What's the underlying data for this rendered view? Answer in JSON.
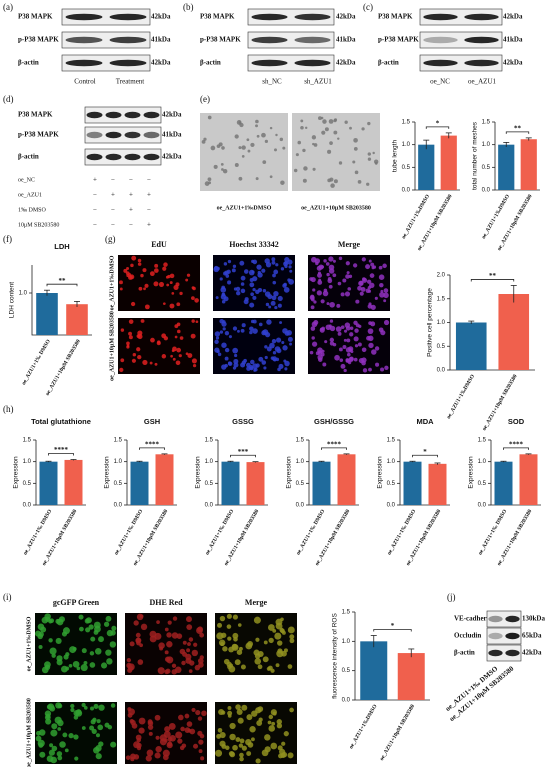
{
  "panels": [
    "(a)",
    "(b)",
    "(c)",
    "(d)",
    "(e)",
    "(f)",
    "(g)",
    "(h)",
    "(i)",
    "(j)"
  ],
  "blot_a": {
    "rows": [
      "P38 MAPK",
      "p-P38 MAPK",
      "β-actin"
    ],
    "sizes": [
      "42kDa",
      "41kDa",
      "42kDa"
    ],
    "lanes": [
      "Control",
      "Treatment"
    ]
  },
  "blot_b": {
    "rows": [
      "P38 MAPK",
      "p-P38 MAPK",
      "β-actin"
    ],
    "sizes": [
      "42kDa",
      "41kDa",
      "42kDa"
    ],
    "lanes": [
      "sh_NC",
      "sh_AZU1"
    ]
  },
  "blot_c": {
    "rows": [
      "P38 MAPK",
      "p-P38 MAPK",
      "β-actin"
    ],
    "sizes": [
      "42kDa",
      "41kDa",
      "42kDa"
    ],
    "lanes": [
      "oe_NC",
      "oe_AZU1"
    ]
  },
  "blot_d": {
    "rows": [
      "P38 MAPK",
      "p-P38 MAPK",
      "β-actin"
    ],
    "sizes": [
      "42kDa",
      "41kDa",
      "42kDa"
    ],
    "treatments": [
      "oe_NC",
      "oe_AZU1",
      "1‰ DMSO",
      "10μM SB203580"
    ],
    "signs": [
      [
        "+",
        "−",
        "−",
        "−"
      ],
      [
        "−",
        "+",
        "+",
        "+"
      ],
      [
        "−",
        "−",
        "+",
        "−"
      ],
      [
        "−",
        "−",
        "−",
        "+"
      ]
    ]
  },
  "images_e": [
    "oe_AZU1+1‰DMSO",
    "oe_AZU1+10μM SB203580"
  ],
  "images_g": {
    "columns": [
      "EdU",
      "Hoechst 33342",
      "Merge"
    ],
    "rows": [
      "oe_AZU1+1‰DMSO",
      "oe_AZU1+10μM SB203580"
    ]
  },
  "images_i": {
    "columns": [
      "gcGFP Green",
      "DHE Red",
      "Merge"
    ],
    "rows": [
      "oe_AZU1+1‰DMSO",
      "oe_AZU1+10μM SB203580"
    ]
  },
  "blot_j": {
    "rows": [
      "VE-cadherin",
      "Occludin",
      "β-actin"
    ],
    "sizes": [
      "130kDa",
      "65kDa",
      "42kDa"
    ],
    "lanes": [
      "oe_AZU1+1‰ DMSO",
      "oe_AZU1+10μM SB203580"
    ]
  },
  "chart_data": [
    {
      "type": "bar",
      "y_label": "tube length",
      "categories": [
        "oe_AZU1+1‰DMSO",
        "oe_AZU1+10μM SB203580"
      ],
      "values": [
        1.0,
        1.2
      ],
      "errors": [
        0.1,
        0.06
      ],
      "colors": [
        "#1f6b9c",
        "#f0604d"
      ],
      "significance": "*",
      "ylim": [
        0,
        1.5
      ],
      "yticks": [
        {
          "value": 0,
          "label": "0.0"
        },
        {
          "value": 0.5,
          "label": "0.5"
        },
        {
          "value": 1,
          "label": "1.0"
        },
        {
          "value": 1.5,
          "label": "1.5"
        }
      ]
    },
    {
      "type": "bar",
      "y_label": "total number of meshes",
      "categories": [
        "oe_AZU1+1‰DMSO",
        "oe_AZU1+10μM SB203580"
      ],
      "values": [
        1.0,
        1.12
      ],
      "errors": [
        0.05,
        0.03
      ],
      "colors": [
        "#1f6b9c",
        "#f0604d"
      ],
      "significance": "**",
      "ylim": [
        0,
        1.5
      ],
      "yticks": [
        {
          "value": 0,
          "label": "0.0"
        },
        {
          "value": 0.5,
          "label": "0.5"
        },
        {
          "value": 1,
          "label": "1.0"
        },
        {
          "value": 1.5,
          "label": "1.5"
        }
      ]
    },
    {
      "type": "bar",
      "title": "LDH",
      "y_label": "LDH content",
      "categories": [
        "oe_AZU1+1‰ DMSO",
        "oe_AZU1+10μM SB203580"
      ],
      "values": [
        1.0,
        0.96
      ],
      "errors": [
        0.01,
        0.01
      ],
      "colors": [
        "#1f6b9c",
        "#f0604d"
      ],
      "significance": "**",
      "ylim": [
        0.85,
        1.1
      ],
      "yticks": [
        {
          "value": 1,
          "label": "1.0"
        }
      ]
    },
    {
      "type": "bar",
      "y_label": "Positive cell percentage",
      "categories": [
        "oe_AZU1+1‰DMSO",
        "oe_AZU1+10μM SB203580"
      ],
      "values": [
        1.0,
        1.6
      ],
      "errors": [
        0.03,
        0.18
      ],
      "colors": [
        "#1f6b9c",
        "#f0604d"
      ],
      "significance": "**",
      "ylim": [
        0,
        2
      ],
      "yticks": [
        {
          "value": 0,
          "label": "0.0"
        },
        {
          "value": 0.5,
          "label": "0.5"
        },
        {
          "value": 1,
          "label": "1.0"
        },
        {
          "value": 1.5,
          "label": "1.5"
        },
        {
          "value": 2,
          "label": "2.0"
        }
      ]
    },
    {
      "type": "bar",
      "title": "Total glutathione",
      "y_label": "Expression",
      "categories": [
        "oe_AZU1+1‰ DMSO",
        "oe_AZU1+10μM SB203580"
      ],
      "values": [
        1.0,
        1.04
      ],
      "errors": [
        0.01,
        0.01
      ],
      "colors": [
        "#1f6b9c",
        "#f0604d"
      ],
      "significance": "****",
      "ylim": [
        0,
        1.5
      ],
      "yticks": [
        {
          "value": 0,
          "label": "0.0"
        },
        {
          "value": 0.5,
          "label": "0.5"
        },
        {
          "value": 1,
          "label": "1.0"
        },
        {
          "value": 1.5,
          "label": "1.5"
        }
      ]
    },
    {
      "type": "bar",
      "title": "GSH",
      "y_label": "Expression",
      "categories": [
        "oe_AZU1+1‰ DMSO",
        "oe_AZU1+10μM SB203580"
      ],
      "values": [
        1.0,
        1.17
      ],
      "errors": [
        0.01,
        0.01
      ],
      "colors": [
        "#1f6b9c",
        "#f0604d"
      ],
      "significance": "****",
      "ylim": [
        0,
        1.5
      ],
      "yticks": [
        {
          "value": 0,
          "label": "0.0"
        },
        {
          "value": 0.5,
          "label": "0.5"
        },
        {
          "value": 1,
          "label": "1.0"
        },
        {
          "value": 1.5,
          "label": "1.5"
        }
      ]
    },
    {
      "type": "bar",
      "title": "GSSG",
      "y_label": "Expression",
      "categories": [
        "oe_AZU1+1‰ DMSO",
        "oe_AZU1+10μM SB203580"
      ],
      "values": [
        1.0,
        0.99
      ],
      "errors": [
        0.01,
        0.01
      ],
      "colors": [
        "#1f6b9c",
        "#f0604d"
      ],
      "significance": "***",
      "ylim": [
        0,
        1.5
      ],
      "yticks": [
        {
          "value": 0,
          "label": "0.0"
        },
        {
          "value": 0.5,
          "label": "0.5"
        },
        {
          "value": 1,
          "label": "1.0"
        },
        {
          "value": 1.5,
          "label": "1.5"
        }
      ]
    },
    {
      "type": "bar",
      "title": "GSH/GSSG",
      "y_label": "Expression",
      "categories": [
        "oe_AZU1+1‰ DMSO",
        "oe_AZU1+10μM SB203580"
      ],
      "values": [
        1.0,
        1.17
      ],
      "errors": [
        0.01,
        0.01
      ],
      "colors": [
        "#1f6b9c",
        "#f0604d"
      ],
      "significance": "****",
      "ylim": [
        0,
        1.5
      ],
      "yticks": [
        {
          "value": 0,
          "label": "0.0"
        },
        {
          "value": 0.5,
          "label": "0.5"
        },
        {
          "value": 1,
          "label": "1.0"
        },
        {
          "value": 1.5,
          "label": "1.5"
        }
      ]
    },
    {
      "type": "bar",
      "title": "MDA",
      "y_label": "Expression",
      "categories": [
        "oe_AZU1+1‰ DMSO",
        "oe_AZU1+10μM SB203580"
      ],
      "values": [
        1.0,
        0.95
      ],
      "errors": [
        0.01,
        0.02
      ],
      "colors": [
        "#1f6b9c",
        "#f0604d"
      ],
      "significance": "*",
      "ylim": [
        0,
        1.5
      ],
      "yticks": [
        {
          "value": 0,
          "label": "0.0"
        },
        {
          "value": 0.5,
          "label": "0.5"
        },
        {
          "value": 1,
          "label": "1.0"
        },
        {
          "value": 1.5,
          "label": "1.5"
        }
      ]
    },
    {
      "type": "bar",
      "title": "SOD",
      "y_label": "Expression",
      "categories": [
        "oe_AZU1+1‰ DMSO",
        "oe_AZU1+10μM SB203580"
      ],
      "values": [
        1.0,
        1.17
      ],
      "errors": [
        0.01,
        0.01
      ],
      "colors": [
        "#1f6b9c",
        "#f0604d"
      ],
      "significance": "****",
      "ylim": [
        0,
        1.5
      ],
      "yticks": [
        {
          "value": 0,
          "label": "0.0"
        },
        {
          "value": 0.5,
          "label": "0.5"
        },
        {
          "value": 1,
          "label": "1.0"
        },
        {
          "value": 1.5,
          "label": "1.5"
        }
      ]
    },
    {
      "type": "bar",
      "y_label": "fluorescence intensity of ROS",
      "categories": [
        "oe_AZU1+1‰DMSO",
        "oe_AZU1+10μM SB203580"
      ],
      "values": [
        1.0,
        0.8
      ],
      "errors": [
        0.1,
        0.07
      ],
      "colors": [
        "#1f6b9c",
        "#f0604d"
      ],
      "significance": "*",
      "ylim": [
        0,
        1.5
      ],
      "yticks": [
        {
          "value": 0,
          "label": "0.0"
        },
        {
          "value": 0.5,
          "label": "0.5"
        },
        {
          "value": 1,
          "label": "1.0"
        },
        {
          "value": 1.5,
          "label": "1.5"
        }
      ]
    }
  ]
}
